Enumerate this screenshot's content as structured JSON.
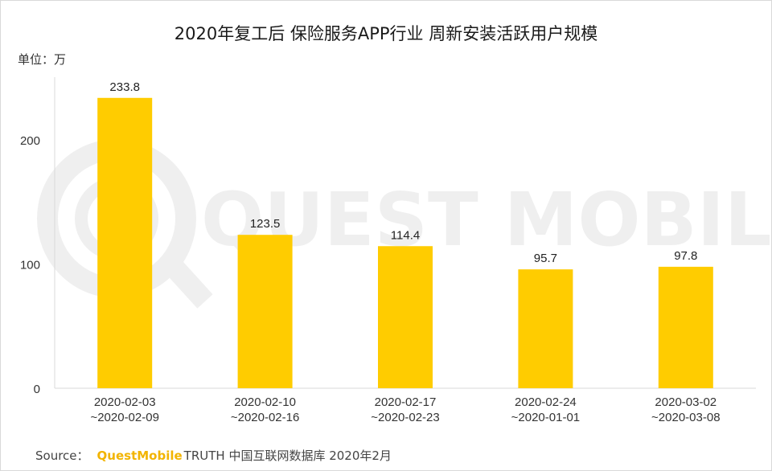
{
  "chart_data": {
    "type": "bar",
    "title": "2020年复工后 保险服务APP行业 周新安装活跃用户规模",
    "unit_label": "单位：万",
    "categories": [
      [
        "2020-02-03",
        "~2020-02-09"
      ],
      [
        "2020-02-10",
        "~2020-02-16"
      ],
      [
        "2020-02-17",
        "~2020-02-23"
      ],
      [
        "2020-02-24",
        "~2020-01-01"
      ],
      [
        "2020-03-02",
        "~2020-03-08"
      ]
    ],
    "values": [
      233.8,
      123.5,
      114.4,
      95.7,
      97.8
    ],
    "value_labels": [
      "233.8",
      "123.5",
      "114.4",
      "95.7",
      "97.8"
    ],
    "yticks": [
      0,
      100,
      200
    ],
    "ylim": [
      0,
      250
    ],
    "grid": false,
    "bar_color": "#ffcc00"
  },
  "watermark": "QUEST MOBILE",
  "source": {
    "prefix": "Source：",
    "brand": "QuestMobile",
    "rest": "TRUTH 中国互联网数据库 2020年2月"
  }
}
